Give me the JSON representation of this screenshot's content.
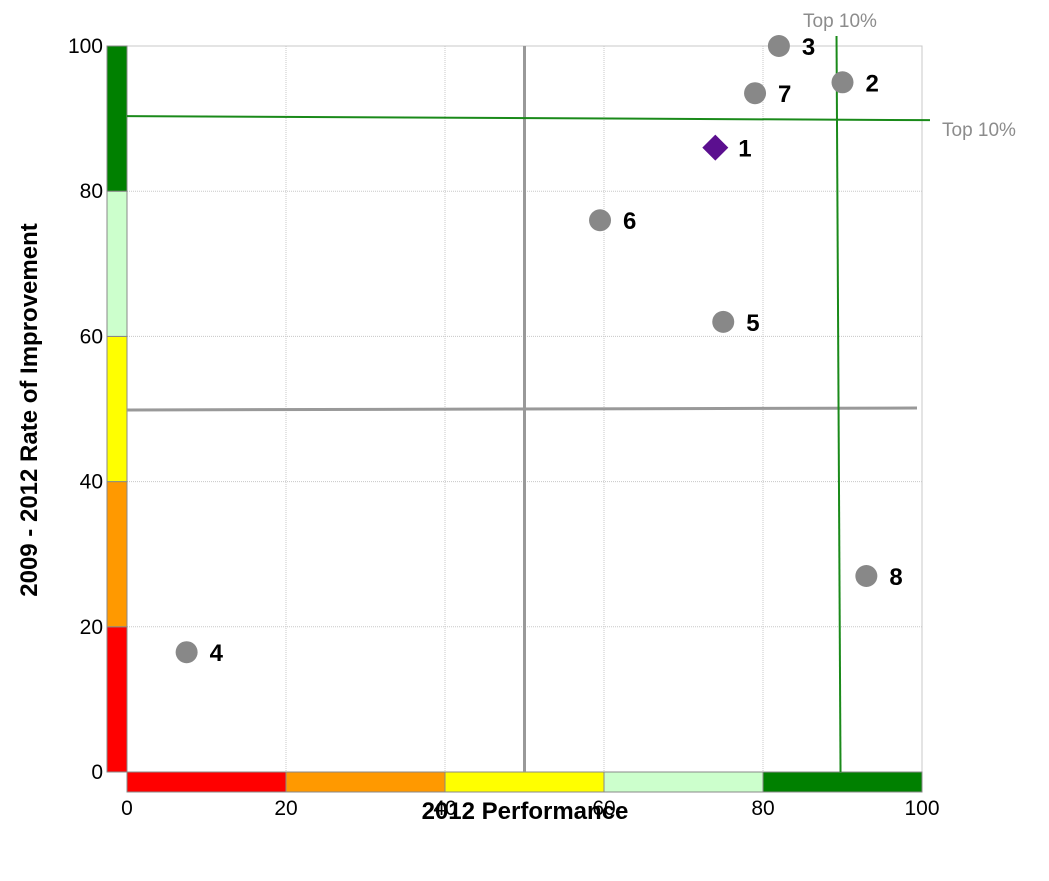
{
  "chart_data": {
    "type": "scatter",
    "title": "",
    "xlabel": "2012 Performance",
    "ylabel": "2009 - 2012 Rate of Improvement",
    "xlim": [
      0,
      100
    ],
    "ylim": [
      0,
      100
    ],
    "xticks": [
      0,
      20,
      40,
      60,
      80,
      100
    ],
    "yticks": [
      0,
      20,
      40,
      60,
      80,
      100
    ],
    "grid": true,
    "points": [
      {
        "label": "1",
        "x": 74,
        "y": 86,
        "marker": "diamond",
        "color": "#5b0f8f"
      },
      {
        "label": "2",
        "x": 90,
        "y": 95,
        "marker": "circle",
        "color": "#888888"
      },
      {
        "label": "3",
        "x": 82,
        "y": 100,
        "marker": "circle",
        "color": "#888888"
      },
      {
        "label": "4",
        "x": 7.5,
        "y": 16.5,
        "marker": "circle",
        "color": "#888888"
      },
      {
        "label": "5",
        "x": 75,
        "y": 62,
        "marker": "circle",
        "color": "#888888"
      },
      {
        "label": "6",
        "x": 59.5,
        "y": 76,
        "marker": "circle",
        "color": "#888888"
      },
      {
        "label": "7",
        "x": 79,
        "y": 93.5,
        "marker": "circle",
        "color": "#888888"
      },
      {
        "label": "8",
        "x": 93,
        "y": 27,
        "marker": "circle",
        "color": "#888888"
      }
    ],
    "median_lines": {
      "x": 50,
      "y": 50,
      "color": "#999999"
    },
    "top10_lines": {
      "x": 89.5,
      "y": 90.2,
      "color": "#1a8a1a"
    },
    "top10_label_x": "Top 10%",
    "top10_label_y": "Top 10%",
    "color_bands": [
      {
        "from": 0,
        "to": 20,
        "color": "#ff0000"
      },
      {
        "from": 20,
        "to": 40,
        "color": "#ff9900"
      },
      {
        "from": 40,
        "to": 60,
        "color": "#ffff00"
      },
      {
        "from": 60,
        "to": 80,
        "color": "#ccffcc"
      },
      {
        "from": 80,
        "to": 100,
        "color": "#008000"
      }
    ]
  }
}
